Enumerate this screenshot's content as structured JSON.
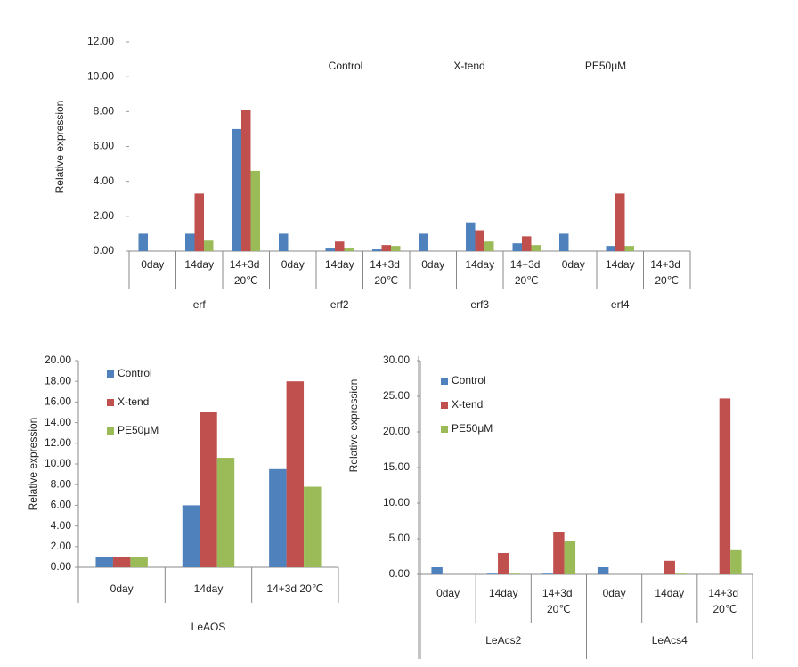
{
  "chart_data": [
    {
      "type": "bar",
      "y_label": "Relative expression",
      "categories": [
        "0day",
        "14day",
        "14+3d 20℃",
        "0day",
        "14day",
        "14+3d 20℃",
        "0day",
        "14day",
        "14+3d 20℃",
        "0day",
        "14day",
        "14+3d 20℃"
      ],
      "groups": [
        "erf",
        "erf2",
        "erf3",
        "erf4"
      ],
      "series": [
        {
          "name": "Control",
          "color": "#4f81bd",
          "values": [
            1.0,
            1.0,
            7.0,
            1.0,
            0.15,
            0.1,
            1.0,
            1.65,
            0.45,
            1.0,
            0.3,
            null
          ]
        },
        {
          "name": "X-tend",
          "color": "#c0504d",
          "values": [
            0,
            3.3,
            8.1,
            0,
            0.55,
            0.35,
            0,
            1.2,
            0.85,
            0,
            3.3,
            null
          ]
        },
        {
          "name": "PE50μM",
          "color": "#9bbb59",
          "values": [
            0,
            0.6,
            4.6,
            0,
            0.15,
            0.3,
            0,
            0.55,
            0.35,
            0,
            0.3,
            null
          ]
        }
      ],
      "ylim": [
        0,
        12
      ],
      "yticks": [
        {
          "value": 0,
          "label": "0.00"
        },
        {
          "value": 2,
          "label": "2.00"
        },
        {
          "value": 4,
          "label": "4.00"
        },
        {
          "value": 6,
          "label": "6.00"
        },
        {
          "value": 8,
          "label": "8.00"
        },
        {
          "value": 10,
          "label": "10.00"
        },
        {
          "value": 12,
          "label": "12.00"
        }
      ]
    },
    {
      "type": "bar",
      "y_label": "Relative expression",
      "x_label": "LeAOS",
      "categories": [
        "0day",
        "14day",
        "14+3d 20℃"
      ],
      "series": [
        {
          "name": "Control",
          "color": "#4f81bd",
          "values": [
            0.95,
            6.0,
            9.5
          ]
        },
        {
          "name": "X-tend",
          "color": "#c0504d",
          "values": [
            0.95,
            15.0,
            18.0
          ]
        },
        {
          "name": "PE50μM",
          "color": "#9bbb59",
          "values": [
            0.95,
            10.6,
            7.8
          ]
        }
      ],
      "ylim": [
        0,
        20
      ],
      "yticks": [
        {
          "value": 0,
          "label": "0.00"
        },
        {
          "value": 2,
          "label": "2.00"
        },
        {
          "value": 4,
          "label": "4.00"
        },
        {
          "value": 6,
          "label": "6.00"
        },
        {
          "value": 8,
          "label": "8.00"
        },
        {
          "value": 10,
          "label": "10.00"
        },
        {
          "value": 12,
          "label": "12.00"
        },
        {
          "value": 14,
          "label": "14.00"
        },
        {
          "value": 16,
          "label": "16.00"
        },
        {
          "value": 18,
          "label": "18.00"
        },
        {
          "value": 20,
          "label": "20.00"
        }
      ]
    },
    {
      "type": "bar",
      "y_label": "Relative expression",
      "categories": [
        "0day",
        "14day",
        "14+3d 20℃",
        "0day",
        "14day",
        "14+3d 20℃"
      ],
      "groups": [
        "LeAcs2",
        "LeAcs4"
      ],
      "series": [
        {
          "name": "Control",
          "color": "#4f81bd",
          "values": [
            1.0,
            0.1,
            0.1,
            1.0,
            0,
            0
          ]
        },
        {
          "name": "X-tend",
          "color": "#c0504d",
          "values": [
            0,
            3.0,
            6.0,
            0,
            1.9,
            24.7
          ]
        },
        {
          "name": "PE50μM",
          "color": "#9bbb59",
          "values": [
            0,
            0.1,
            4.7,
            0,
            0.1,
            3.4
          ]
        }
      ],
      "ylim": [
        0,
        30
      ],
      "yticks": [
        {
          "value": 0,
          "label": "0.00"
        },
        {
          "value": 5,
          "label": "5.00"
        },
        {
          "value": 10,
          "label": "10.00"
        },
        {
          "value": 15,
          "label": "15.00"
        },
        {
          "value": 20,
          "label": "20.00"
        },
        {
          "value": 25,
          "label": "25.00"
        },
        {
          "value": 30,
          "label": "30.00"
        }
      ]
    }
  ]
}
